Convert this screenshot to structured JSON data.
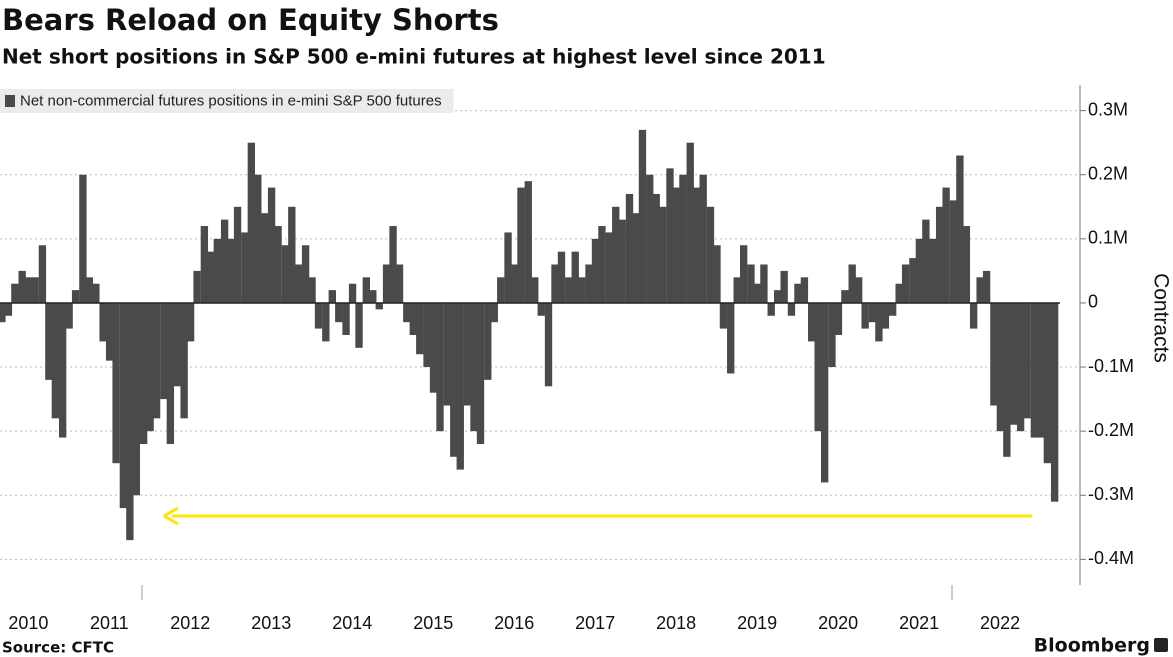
{
  "chart_data": {
    "type": "bar",
    "title": "Bears Reload on Equity Shorts",
    "subtitle": "Net short positions in S&P 500 e-mini futures at highest level since 2011",
    "y_label": "Contracts",
    "source": "Source: CFTC",
    "brand": "Bloomberg",
    "legend": "top-left",
    "grid": true,
    "x": [
      2010.17,
      2010.25,
      2010.33,
      2010.42,
      2010.5,
      2010.58,
      2010.67,
      2010.75,
      2010.83,
      2010.92,
      2011,
      2011.08,
      2011.17,
      2011.25,
      2011.33,
      2011.42,
      2011.5,
      2011.58,
      2011.67,
      2011.75,
      2011.83,
      2011.92,
      2012,
      2012.08,
      2012.17,
      2012.25,
      2012.33,
      2012.42,
      2012.5,
      2012.58,
      2012.67,
      2012.75,
      2012.83,
      2012.92,
      2013,
      2013.08,
      2013.17,
      2013.25,
      2013.33,
      2013.42,
      2013.5,
      2013.58,
      2013.67,
      2013.75,
      2013.83,
      2013.92,
      2014,
      2014.08,
      2014.17,
      2014.25,
      2014.33,
      2014.42,
      2014.5,
      2014.58,
      2014.67,
      2014.75,
      2014.83,
      2014.92,
      2015,
      2015.08,
      2015.17,
      2015.25,
      2015.33,
      2015.42,
      2015.5,
      2015.58,
      2015.67,
      2015.75,
      2015.83,
      2015.92,
      2016,
      2016.08,
      2016.17,
      2016.25,
      2016.33,
      2016.42,
      2016.5,
      2016.58,
      2016.67,
      2016.75,
      2016.83,
      2016.92,
      2017,
      2017.08,
      2017.17,
      2017.25,
      2017.33,
      2017.42,
      2017.5,
      2017.58,
      2017.67,
      2017.75,
      2017.83,
      2017.92,
      2018,
      2018.08,
      2018.17,
      2018.25,
      2018.33,
      2018.42,
      2018.5,
      2018.58,
      2018.67,
      2018.75,
      2018.83,
      2018.92,
      2019,
      2019.08,
      2019.17,
      2019.25,
      2019.33,
      2019.42,
      2019.5,
      2019.58,
      2019.67,
      2019.75,
      2019.83,
      2019.92,
      2020,
      2020.08,
      2020.17,
      2020.25,
      2020.33,
      2020.42,
      2020.5,
      2020.58,
      2020.67,
      2020.75,
      2020.83,
      2020.92,
      2021,
      2021.08,
      2021.17,
      2021.25,
      2021.33,
      2021.42,
      2021.5,
      2021.58,
      2021.67,
      2021.75,
      2021.83,
      2021.92,
      2022,
      2022.08,
      2022.17,
      2022.25,
      2022.33,
      2022.42,
      2022.5,
      2022.58,
      2022.67,
      2022.75,
      2022.83,
      2022.92,
      2023,
      2023.08,
      2023.17
    ],
    "series": [
      {
        "name": "Net non-commercial futures positions in e-mini S&P 500 futures",
        "color": "#4a4a4a",
        "values": [
          -30000,
          -20000,
          30000,
          50000,
          40000,
          40000,
          90000,
          -120000,
          -180000,
          -210000,
          -40000,
          20000,
          200000,
          40000,
          30000,
          -60000,
          -90000,
          -250000,
          -320000,
          -370000,
          -300000,
          -220000,
          -200000,
          -180000,
          -150000,
          -220000,
          -130000,
          -180000,
          -60000,
          50000,
          120000,
          80000,
          100000,
          130000,
          100000,
          150000,
          110000,
          250000,
          200000,
          140000,
          180000,
          120000,
          90000,
          150000,
          60000,
          90000,
          40000,
          -40000,
          -60000,
          20000,
          -30000,
          -50000,
          30000,
          -70000,
          40000,
          20000,
          -10000,
          60000,
          120000,
          60000,
          -30000,
          -50000,
          -80000,
          -100000,
          -140000,
          -200000,
          -160000,
          -240000,
          -260000,
          -160000,
          -200000,
          -220000,
          -120000,
          -30000,
          40000,
          110000,
          60000,
          180000,
          190000,
          40000,
          -20000,
          -130000,
          60000,
          80000,
          40000,
          80000,
          40000,
          60000,
          100000,
          120000,
          110000,
          150000,
          130000,
          170000,
          140000,
          270000,
          200000,
          170000,
          150000,
          210000,
          180000,
          200000,
          250000,
          180000,
          200000,
          150000,
          90000,
          -40000,
          -110000,
          40000,
          90000,
          60000,
          30000,
          60000,
          -20000,
          20000,
          50000,
          -20000,
          30000,
          40000,
          -60000,
          -200000,
          -280000,
          -100000,
          -50000,
          20000,
          60000,
          40000,
          -40000,
          -30000,
          -60000,
          -40000,
          -20000,
          30000,
          60000,
          70000,
          100000,
          130000,
          100000,
          150000,
          180000,
          160000,
          230000,
          120000,
          -40000,
          40000,
          50000,
          -160000,
          -200000,
          -240000,
          -190000,
          -200000,
          -180000,
          -210000,
          -210000,
          -250000,
          -310000
        ]
      }
    ],
    "xlim": [
      2010.15,
      2023.24
    ],
    "xticks": [
      {
        "value": 2010.5,
        "label": "2010"
      },
      {
        "value": 2011.5,
        "label": "2011"
      },
      {
        "value": 2012.5,
        "label": "2012"
      },
      {
        "value": 2013.5,
        "label": "2013"
      },
      {
        "value": 2014.5,
        "label": "2014"
      },
      {
        "value": 2015.5,
        "label": "2015"
      },
      {
        "value": 2016.5,
        "label": "2016"
      },
      {
        "value": 2017.5,
        "label": "2017"
      },
      {
        "value": 2018.5,
        "label": "2018"
      },
      {
        "value": 2019.5,
        "label": "2019"
      },
      {
        "value": 2020.5,
        "label": "2020"
      },
      {
        "value": 2021.5,
        "label": "2021"
      },
      {
        "value": 2022.5,
        "label": "2022"
      }
    ],
    "ylim": [
      -440000,
      340000
    ],
    "yticks": [
      {
        "value": -400000,
        "label": "-0.4M"
      },
      {
        "value": -300000,
        "label": "-0.3M"
      },
      {
        "value": -200000,
        "label": "-0.2M"
      },
      {
        "value": -100000,
        "label": "-0.1M"
      },
      0,
      {
        "value": 100000,
        "label": "0.1M"
      },
      {
        "value": 200000,
        "label": "0.2M"
      },
      {
        "value": 300000,
        "label": "0.3M"
      }
    ]
  }
}
